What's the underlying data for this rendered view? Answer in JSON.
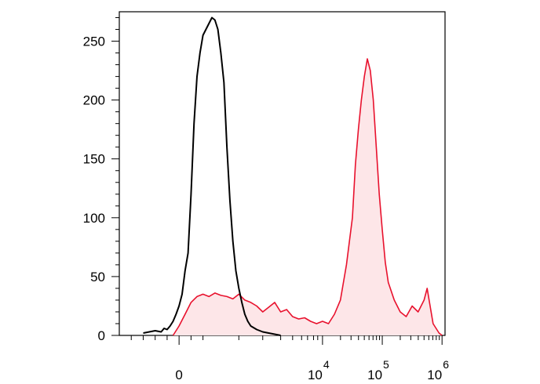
{
  "chart_data": {
    "type": "area",
    "title": "",
    "xlabel": "",
    "ylabel": "",
    "x_scale": "biexponential",
    "ylim": [
      0,
      275
    ],
    "y_ticks": [
      0,
      50,
      100,
      150,
      200,
      250
    ],
    "y_tick_labels": [
      "0",
      "50",
      "100",
      "150",
      "200",
      "250"
    ],
    "x_ticks": [
      {
        "base": "0",
        "exp": ""
      },
      {
        "base": "10",
        "exp": "4"
      },
      {
        "base": "10",
        "exp": "5"
      },
      {
        "base": "10",
        "exp": "6"
      }
    ],
    "grid": false,
    "legend": "none",
    "series": [
      {
        "color": "#000000",
        "fill": "none",
        "points": [
          [
            -0.6,
            2
          ],
          [
            -0.5,
            3
          ],
          [
            -0.4,
            4
          ],
          [
            -0.3,
            3
          ],
          [
            -0.25,
            6
          ],
          [
            -0.2,
            5
          ],
          [
            -0.15,
            8
          ],
          [
            -0.1,
            12
          ],
          [
            -0.05,
            18
          ],
          [
            0.0,
            25
          ],
          [
            0.05,
            35
          ],
          [
            0.1,
            55
          ],
          [
            0.15,
            70
          ],
          [
            0.2,
            120
          ],
          [
            0.25,
            180
          ],
          [
            0.3,
            220
          ],
          [
            0.35,
            240
          ],
          [
            0.4,
            255
          ],
          [
            0.45,
            260
          ],
          [
            0.5,
            265
          ],
          [
            0.55,
            270
          ],
          [
            0.6,
            268
          ],
          [
            0.65,
            260
          ],
          [
            0.7,
            240
          ],
          [
            0.75,
            215
          ],
          [
            0.8,
            160
          ],
          [
            0.85,
            115
          ],
          [
            0.9,
            80
          ],
          [
            0.95,
            55
          ],
          [
            1.0,
            40
          ],
          [
            1.05,
            28
          ],
          [
            1.1,
            18
          ],
          [
            1.15,
            12
          ],
          [
            1.2,
            8
          ],
          [
            1.3,
            5
          ],
          [
            1.4,
            3
          ],
          [
            1.5,
            2
          ],
          [
            1.6,
            1
          ],
          [
            1.7,
            0
          ]
        ]
      },
      {
        "color": "#e8112d",
        "fill": "#fde6e8",
        "points": [
          [
            -0.1,
            0
          ],
          [
            0.0,
            8
          ],
          [
            0.1,
            18
          ],
          [
            0.2,
            28
          ],
          [
            0.3,
            33
          ],
          [
            0.4,
            35
          ],
          [
            0.5,
            33
          ],
          [
            0.6,
            36
          ],
          [
            0.7,
            34
          ],
          [
            0.8,
            33
          ],
          [
            0.9,
            31
          ],
          [
            1.0,
            35
          ],
          [
            1.1,
            30
          ],
          [
            1.2,
            28
          ],
          [
            1.3,
            25
          ],
          [
            1.4,
            20
          ],
          [
            1.5,
            24
          ],
          [
            1.6,
            28
          ],
          [
            1.7,
            20
          ],
          [
            1.8,
            22
          ],
          [
            1.9,
            16
          ],
          [
            2.0,
            14
          ],
          [
            2.1,
            15
          ],
          [
            2.2,
            12
          ],
          [
            2.3,
            10
          ],
          [
            2.4,
            12
          ],
          [
            2.5,
            10
          ],
          [
            2.6,
            18
          ],
          [
            2.7,
            30
          ],
          [
            2.8,
            60
          ],
          [
            2.9,
            100
          ],
          [
            2.95,
            145
          ],
          [
            3.0,
            175
          ],
          [
            3.05,
            200
          ],
          [
            3.1,
            220
          ],
          [
            3.15,
            235
          ],
          [
            3.2,
            225
          ],
          [
            3.25,
            200
          ],
          [
            3.3,
            160
          ],
          [
            3.35,
            120
          ],
          [
            3.4,
            90
          ],
          [
            3.45,
            62
          ],
          [
            3.5,
            45
          ],
          [
            3.6,
            30
          ],
          [
            3.7,
            20
          ],
          [
            3.8,
            16
          ],
          [
            3.9,
            25
          ],
          [
            4.0,
            20
          ],
          [
            4.1,
            30
          ],
          [
            4.15,
            40
          ],
          [
            4.2,
            25
          ],
          [
            4.25,
            10
          ],
          [
            4.3,
            6
          ],
          [
            4.35,
            2
          ],
          [
            4.4,
            0
          ]
        ]
      }
    ]
  }
}
